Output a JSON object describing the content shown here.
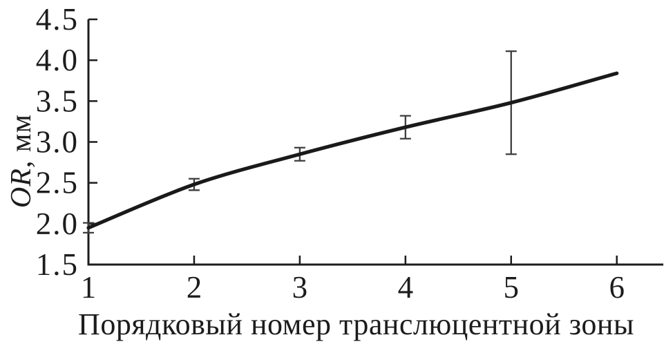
{
  "figure": {
    "background_color": "#ffffff",
    "axis_color": "#1c1c1c",
    "line_color": "#1a1a1a",
    "error_bar_color": "#3d3d3d",
    "text_color": "#1c1c1c"
  },
  "axes": {
    "x_label": "Порядковый номер транслюцентной зоны",
    "y_label_variable": "OR",
    "y_label_unit": ", мм",
    "x_tick_labels": [
      "1",
      "2",
      "3",
      "4",
      "5",
      "6"
    ],
    "y_tick_labels": [
      "1.5",
      "2.0",
      "2.5",
      "3.0",
      "3.5",
      "4.0",
      "4.5"
    ]
  },
  "chart_data": {
    "type": "line",
    "title": "",
    "xlabel": "Порядковый номер транслюцентной зоны",
    "ylabel": "OR, мм",
    "x": [
      1,
      2,
      3,
      4,
      5,
      6
    ],
    "y": [
      1.95,
      2.48,
      2.85,
      3.18,
      3.48,
      3.84
    ],
    "points": [
      {
        "x": 1,
        "y": 1.95,
        "err_low": 1.89,
        "err_high": 2.01
      },
      {
        "x": 2,
        "y": 2.48,
        "err_low": 2.41,
        "err_high": 2.55
      },
      {
        "x": 3,
        "y": 2.85,
        "err_low": 2.77,
        "err_high": 2.93
      },
      {
        "x": 4,
        "y": 3.18,
        "err_low": 3.04,
        "err_high": 3.32
      },
      {
        "x": 5,
        "y": 3.48,
        "err_low": 2.85,
        "err_high": 4.11
      },
      {
        "x": 6,
        "y": 3.84,
        "err_low": null,
        "err_high": null
      }
    ],
    "x_ticks": [
      1,
      2,
      3,
      4,
      5,
      6
    ],
    "y_ticks": [
      1.5,
      2.0,
      2.5,
      3.0,
      3.5,
      4.0,
      4.5
    ],
    "xlim": [
      1,
      6.44
    ],
    "ylim": [
      1.5,
      4.5
    ],
    "grid": false,
    "legend": null,
    "marker": "none",
    "smooth": true
  }
}
